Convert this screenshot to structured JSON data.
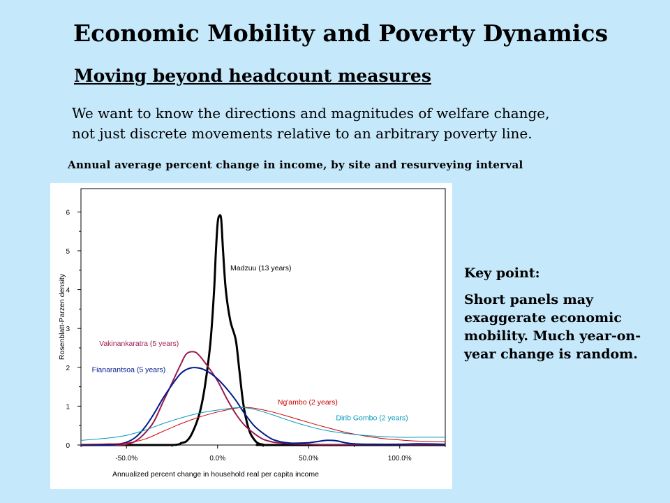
{
  "slide": {
    "title": "Economic Mobility and Poverty Dynamics",
    "subtitle": "Moving beyond headcount measures",
    "body_line1": "We want to know the directions and magnitudes of welfare change,",
    "body_line2": "not just discrete movements relative to an arbitrary poverty line.",
    "chart_caption": "Annual average percent change in income, by site and resurveying interval"
  },
  "keypoint": {
    "heading": "Key point:",
    "text": "Short panels may exaggerate economic mobility.  Much year-on-year change is random."
  },
  "chart_data": {
    "type": "line",
    "xlabel": "Annualized percent change in household real per capita income",
    "ylabel": "Rosenblatt-Parzen density",
    "xlim": [
      -0.75,
      1.25
    ],
    "ylim": [
      0,
      6.6
    ],
    "xticks": [
      -0.5,
      0.0,
      0.5,
      1.0
    ],
    "xtick_labels": [
      "-50.0%",
      "0.0%",
      "50.0%",
      "100.0%"
    ],
    "yticks": [
      0,
      1,
      2,
      3,
      4,
      5,
      6
    ],
    "ytick_labels": [
      "0",
      "1",
      "2",
      "3",
      "4",
      "5",
      "6"
    ],
    "grid": false,
    "legend": "none",
    "series": [
      {
        "name": "Madzuu (13 years)",
        "color": "#000000",
        "width": 3,
        "label": {
          "text": "Madzuu (13 years)",
          "x": 0.07,
          "y": 4.5
        },
        "points": [
          [
            -0.75,
            0
          ],
          [
            -0.3,
            0
          ],
          [
            -0.22,
            0.01
          ],
          [
            -0.2,
            0.05
          ],
          [
            -0.17,
            0.1
          ],
          [
            -0.14,
            0.3
          ],
          [
            -0.1,
            0.8
          ],
          [
            -0.07,
            1.5
          ],
          [
            -0.04,
            2.6
          ],
          [
            -0.02,
            3.9
          ],
          [
            -0.01,
            4.9
          ],
          [
            0.0,
            5.7
          ],
          [
            0.01,
            5.9
          ],
          [
            0.02,
            5.8
          ],
          [
            0.03,
            5.0
          ],
          [
            0.045,
            4.0
          ],
          [
            0.07,
            3.2
          ],
          [
            0.1,
            2.7
          ],
          [
            0.12,
            1.9
          ],
          [
            0.14,
            1.1
          ],
          [
            0.16,
            0.6
          ],
          [
            0.18,
            0.3
          ],
          [
            0.2,
            0.15
          ],
          [
            0.22,
            0.05
          ],
          [
            0.25,
            0.01
          ],
          [
            0.3,
            0
          ],
          [
            1.25,
            0
          ]
        ]
      },
      {
        "name": "Vakinankaratra (5 years)",
        "color": "#9b1b50",
        "width": 2,
        "label": {
          "text": "Vakinankaratra (5 years)",
          "x": -0.65,
          "y": 2.55
        },
        "points": [
          [
            -0.75,
            0
          ],
          [
            -0.55,
            0
          ],
          [
            -0.5,
            0.02
          ],
          [
            -0.45,
            0.1
          ],
          [
            -0.4,
            0.3
          ],
          [
            -0.35,
            0.6
          ],
          [
            -0.3,
            1.1
          ],
          [
            -0.25,
            1.6
          ],
          [
            -0.2,
            2.1
          ],
          [
            -0.17,
            2.35
          ],
          [
            -0.13,
            2.4
          ],
          [
            -0.1,
            2.3
          ],
          [
            -0.05,
            2.0
          ],
          [
            0.0,
            1.65
          ],
          [
            0.05,
            1.2
          ],
          [
            0.1,
            0.8
          ],
          [
            0.15,
            0.5
          ],
          [
            0.2,
            0.3
          ],
          [
            0.25,
            0.15
          ],
          [
            0.3,
            0.08
          ],
          [
            0.35,
            0.05
          ],
          [
            0.4,
            0.03
          ],
          [
            0.5,
            0.02
          ],
          [
            0.6,
            0.01
          ],
          [
            0.8,
            0.01
          ],
          [
            1.0,
            0.01
          ],
          [
            1.25,
            0.01
          ]
        ]
      },
      {
        "name": "Fianarantsoa (5 years)",
        "color": "#001a8c",
        "width": 2,
        "label": {
          "text": "Fianarantsoa (5 years)",
          "x": -0.69,
          "y": 1.88
        },
        "points": [
          [
            -0.75,
            0
          ],
          [
            -0.6,
            0
          ],
          [
            -0.55,
            0.02
          ],
          [
            -0.5,
            0.07
          ],
          [
            -0.45,
            0.2
          ],
          [
            -0.4,
            0.45
          ],
          [
            -0.35,
            0.8
          ],
          [
            -0.3,
            1.2
          ],
          [
            -0.25,
            1.55
          ],
          [
            -0.2,
            1.85
          ],
          [
            -0.15,
            1.98
          ],
          [
            -0.1,
            1.98
          ],
          [
            -0.05,
            1.88
          ],
          [
            0.0,
            1.7
          ],
          [
            0.05,
            1.45
          ],
          [
            0.1,
            1.15
          ],
          [
            0.15,
            0.8
          ],
          [
            0.2,
            0.5
          ],
          [
            0.25,
            0.3
          ],
          [
            0.3,
            0.15
          ],
          [
            0.35,
            0.08
          ],
          [
            0.4,
            0.05
          ],
          [
            0.45,
            0.05
          ],
          [
            0.5,
            0.06
          ],
          [
            0.55,
            0.09
          ],
          [
            0.6,
            0.12
          ],
          [
            0.65,
            0.11
          ],
          [
            0.7,
            0.06
          ],
          [
            0.75,
            0.03
          ],
          [
            0.85,
            0.02
          ],
          [
            1.0,
            0.02
          ],
          [
            1.1,
            0.03
          ],
          [
            1.25,
            0.02
          ]
        ]
      },
      {
        "name": "Ng'ambo (2 years)",
        "color": "#cc0000",
        "width": 1,
        "label": {
          "text": "Ng'ambo (2 years)",
          "x": 0.33,
          "y": 1.04
        },
        "points": [
          [
            -0.75,
            0.02
          ],
          [
            -0.6,
            0.03
          ],
          [
            -0.5,
            0.05
          ],
          [
            -0.4,
            0.15
          ],
          [
            -0.3,
            0.35
          ],
          [
            -0.2,
            0.55
          ],
          [
            -0.1,
            0.72
          ],
          [
            0.0,
            0.85
          ],
          [
            0.1,
            0.95
          ],
          [
            0.15,
            0.97
          ],
          [
            0.2,
            0.95
          ],
          [
            0.3,
            0.85
          ],
          [
            0.4,
            0.72
          ],
          [
            0.5,
            0.58
          ],
          [
            0.6,
            0.45
          ],
          [
            0.7,
            0.33
          ],
          [
            0.8,
            0.24
          ],
          [
            0.9,
            0.17
          ],
          [
            1.0,
            0.13
          ],
          [
            1.1,
            0.1
          ],
          [
            1.25,
            0.08
          ]
        ]
      },
      {
        "name": "Dirib Gombo (2 years)",
        "color": "#0099bb",
        "width": 1,
        "label": {
          "text": "Dirib Gombo (2 years)",
          "x": 0.65,
          "y": 0.64
        },
        "points": [
          [
            -0.75,
            0.12
          ],
          [
            -0.6,
            0.18
          ],
          [
            -0.5,
            0.25
          ],
          [
            -0.4,
            0.38
          ],
          [
            -0.3,
            0.55
          ],
          [
            -0.2,
            0.7
          ],
          [
            -0.1,
            0.82
          ],
          [
            0.0,
            0.9
          ],
          [
            0.1,
            0.96
          ],
          [
            0.15,
            0.96
          ],
          [
            0.2,
            0.92
          ],
          [
            0.3,
            0.78
          ],
          [
            0.4,
            0.62
          ],
          [
            0.5,
            0.48
          ],
          [
            0.6,
            0.37
          ],
          [
            0.7,
            0.3
          ],
          [
            0.8,
            0.25
          ],
          [
            0.9,
            0.22
          ],
          [
            1.0,
            0.2
          ],
          [
            1.1,
            0.2
          ],
          [
            1.25,
            0.2
          ]
        ]
      }
    ]
  }
}
